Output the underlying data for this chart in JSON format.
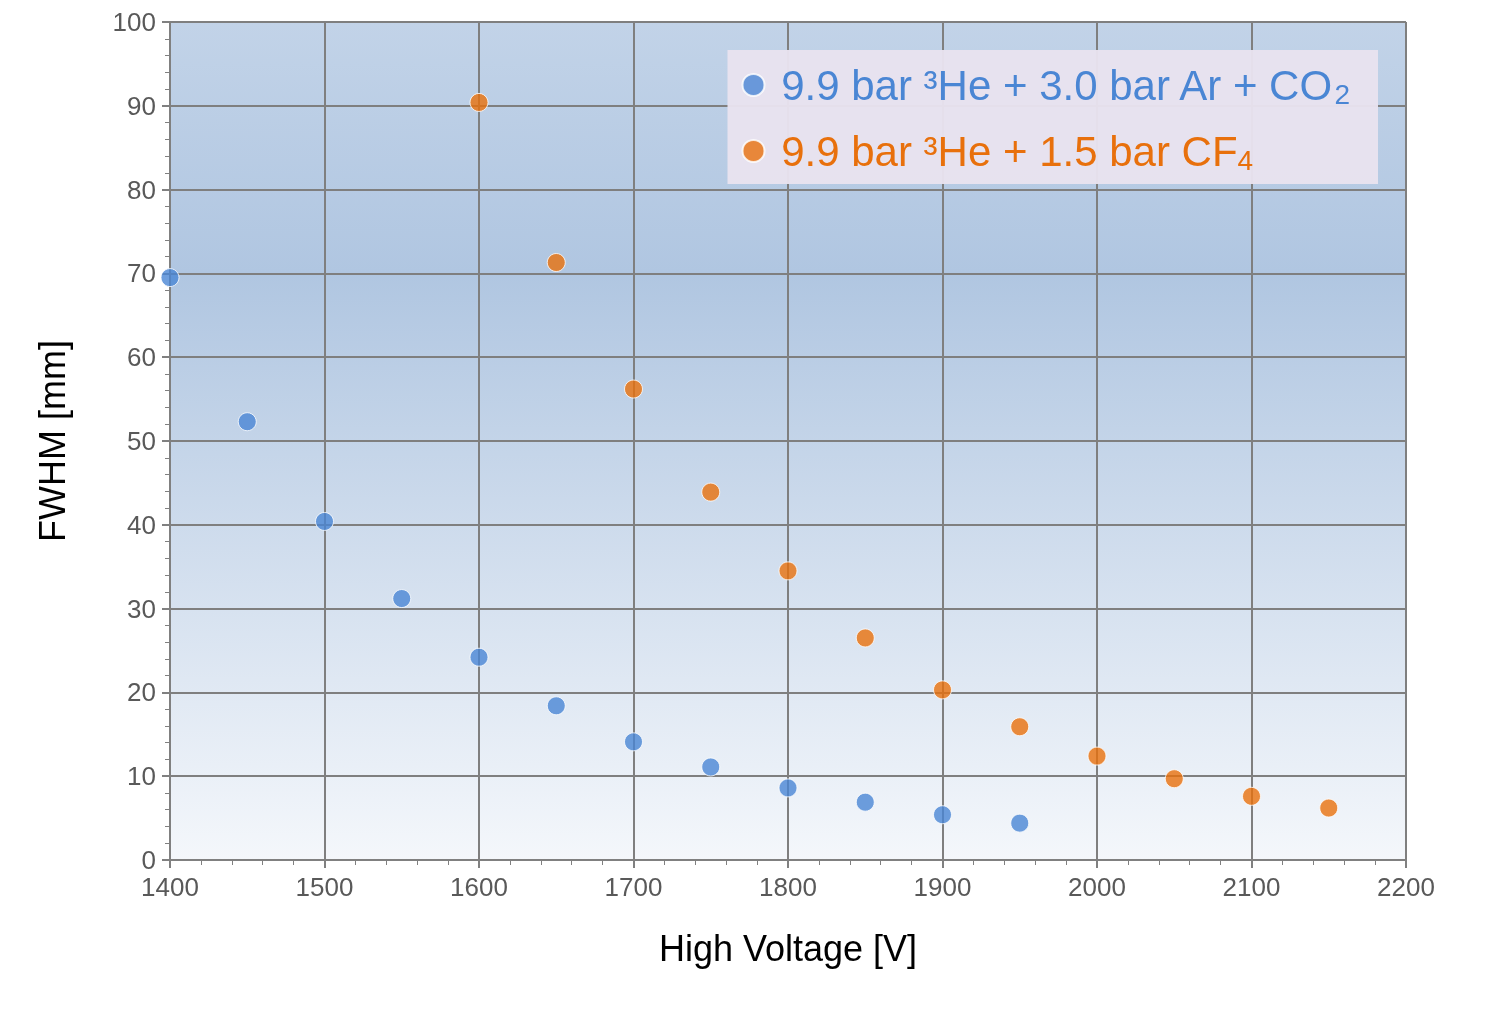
{
  "chart_data": {
    "type": "scatter",
    "xlabel": "High Voltage [V]",
    "ylabel": "FWHM [mm]",
    "xlim": [
      1400,
      2200
    ],
    "xticks": [
      1400,
      1500,
      1600,
      1700,
      1800,
      1900,
      2000,
      2100,
      2200
    ],
    "ylim": [
      0,
      100
    ],
    "yticks": [
      0,
      10,
      20,
      30,
      40,
      50,
      60,
      70,
      80,
      90,
      100
    ],
    "grid": true,
    "legend": "top right",
    "marker": "circle",
    "series": [
      {
        "name": "9.9 bar ³He + 3.0 bar Ar + CO$_{2}$",
        "color": "#4a86d4",
        "x": [
          1400,
          1450,
          1500,
          1550,
          1600,
          1650,
          1700,
          1750,
          1800,
          1850,
          1900,
          1950
        ],
        "values": [
          69.5,
          52.3,
          40.4,
          31.2,
          24.2,
          18.4,
          14.1,
          11.1,
          8.6,
          6.9,
          5.4,
          4.4
        ]
      },
      {
        "name": "9.9 bar ³He + 1.5 bar CF$_{4}$",
        "color": "#e8700c",
        "x": [
          1600,
          1650,
          1700,
          1750,
          1800,
          1850,
          1900,
          1950,
          2000,
          2050,
          2100,
          2150
        ],
        "values": [
          90.4,
          71.3,
          56.2,
          43.9,
          34.5,
          26.5,
          20.3,
          15.9,
          12.4,
          9.7,
          7.6,
          6.2
        ]
      }
    ]
  }
}
